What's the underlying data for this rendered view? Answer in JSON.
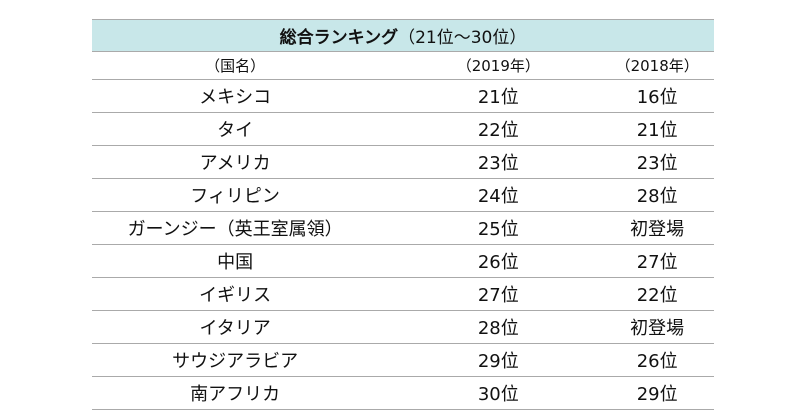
{
  "title": {
    "main": "総合ランキング",
    "range": "（21位～30位）"
  },
  "headers": [
    "（国名）",
    "（2019年）",
    "（2018年）"
  ],
  "rows": [
    {
      "country": "メキシコ",
      "y2019": "21位",
      "y2018": "16位"
    },
    {
      "country": "タイ",
      "y2019": "22位",
      "y2018": "21位"
    },
    {
      "country": "アメリカ",
      "y2019": "23位",
      "y2018": "23位"
    },
    {
      "country": "フィリピン",
      "y2019": "24位",
      "y2018": "28位"
    },
    {
      "country": "ガーンジー（英王室属領）",
      "y2019": "25位",
      "y2018": "初登場"
    },
    {
      "country": "中国",
      "y2019": "26位",
      "y2018": "27位"
    },
    {
      "country": "イギリス",
      "y2019": "27位",
      "y2018": "22位"
    },
    {
      "country": "イタリア",
      "y2019": "28位",
      "y2018": "初登場"
    },
    {
      "country": "サウジアラビア",
      "y2019": "29位",
      "y2018": "26位"
    },
    {
      "country": "南アフリカ",
      "y2019": "30位",
      "y2018": "29位"
    }
  ],
  "colors": {
    "header_bg": "#c8e7e9",
    "rule": "#aaaaaa"
  }
}
